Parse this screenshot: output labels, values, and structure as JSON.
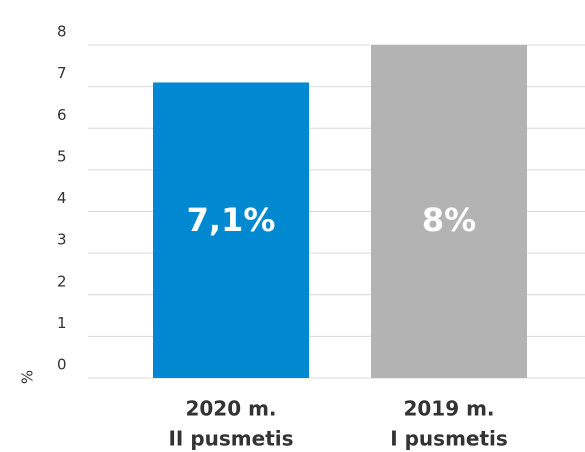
{
  "chart_data": {
    "type": "bar",
    "categories": [
      [
        "2020 m.",
        "II pusmetis"
      ],
      [
        "2019 m.",
        "I pusmetis"
      ]
    ],
    "values": [
      7.1,
      8
    ],
    "data_labels": [
      "7,1%",
      "8%"
    ],
    "bar_colors": [
      "#0088d1",
      "#b3b3b3"
    ],
    "ylabel": "%",
    "ylim": [
      0,
      8
    ],
    "yticks": [
      "0",
      "1",
      "2",
      "3",
      "4",
      "5",
      "6",
      "7",
      "8"
    ],
    "grid": true,
    "title": "",
    "xlabel": ""
  }
}
